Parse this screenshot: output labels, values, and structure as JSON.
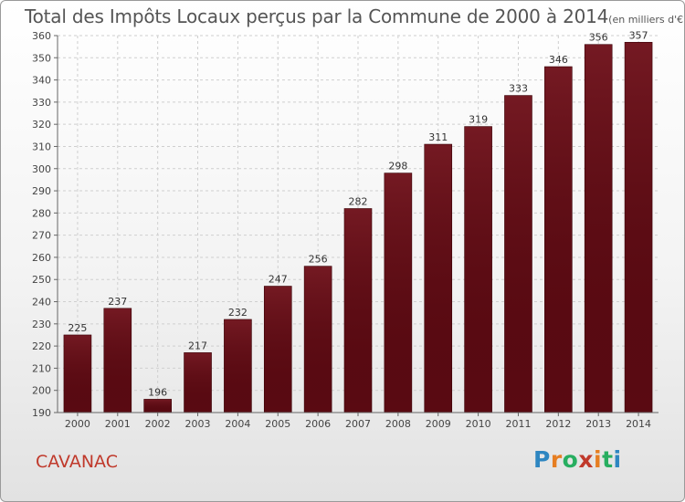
{
  "title": "Total des Impôts Locaux perçus par la Commune de 2000 à 2014",
  "unit_label": "(en milliers d'€)",
  "commune": "CAVANAC",
  "logo": {
    "letters": [
      "P",
      "r",
      "o",
      "x",
      "i",
      "t",
      "i"
    ],
    "colors": [
      "#2e86c1",
      "#e67e22",
      "#27ae60",
      "#c0392b",
      "#e67e22",
      "#27ae60",
      "#2e86c1"
    ]
  },
  "chart_data": {
    "type": "bar",
    "categories": [
      "2000",
      "2001",
      "2002",
      "2003",
      "2004",
      "2005",
      "2006",
      "2007",
      "2008",
      "2009",
      "2010",
      "2011",
      "2012",
      "2013",
      "2014"
    ],
    "values": [
      225,
      237,
      196,
      217,
      232,
      247,
      256,
      282,
      298,
      311,
      319,
      333,
      346,
      356,
      357
    ],
    "ylim": [
      190,
      360
    ],
    "yticks": [
      190,
      200,
      210,
      220,
      230,
      240,
      250,
      260,
      270,
      280,
      290,
      300,
      310,
      320,
      330,
      340,
      350,
      360
    ],
    "grid": true,
    "bar_color": "#6e0f18"
  }
}
